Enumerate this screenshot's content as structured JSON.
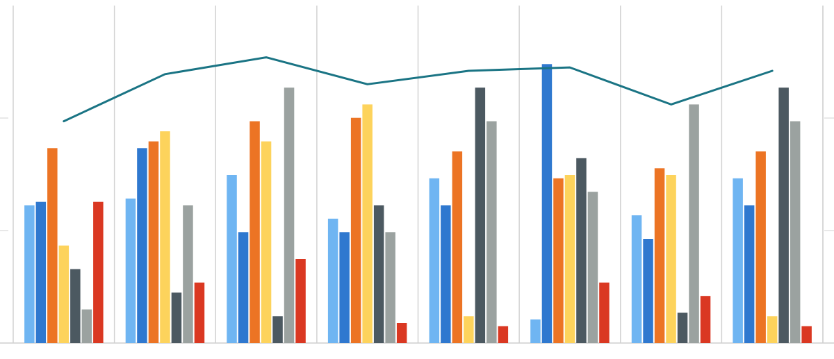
{
  "chart_data": {
    "type": "bar",
    "categories": [
      "",
      "",
      "",
      "",
      "",
      "",
      "",
      ""
    ],
    "ylim": [
      0,
      100
    ],
    "grid": true,
    "legend": "none",
    "series": [
      {
        "color": "#6FB5F2",
        "values": [
          41,
          43,
          50,
          37,
          49,
          7,
          38,
          49
        ]
      },
      {
        "color": "#2F78CF",
        "values": [
          42,
          58,
          33,
          33,
          41,
          83,
          31,
          41
        ]
      },
      {
        "color": "#EC7424",
        "values": [
          58,
          60,
          66,
          67,
          57,
          49,
          52,
          57
        ]
      },
      {
        "color": "#FDD35C",
        "values": [
          29,
          63,
          60,
          71,
          8,
          50,
          50,
          8
        ]
      },
      {
        "color": "#4C5961",
        "values": [
          22,
          15,
          8,
          41,
          76,
          55,
          9,
          76
        ]
      },
      {
        "color": "#9BA2A0",
        "values": [
          10,
          41,
          76,
          33,
          66,
          45,
          71,
          66
        ]
      },
      {
        "color": "#DA3822",
        "values": [
          42,
          18,
          25,
          6,
          5,
          18,
          14,
          5
        ]
      }
    ],
    "line_series": {
      "color": "#1A7484",
      "values": [
        66,
        80,
        85,
        77,
        81,
        82,
        71,
        81
      ]
    }
  }
}
